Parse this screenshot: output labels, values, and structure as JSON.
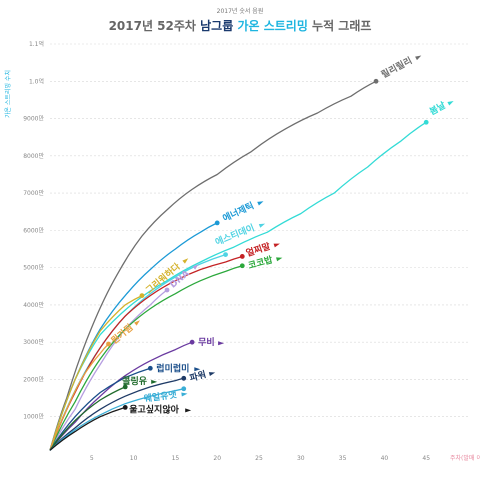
{
  "header": {
    "top_label": "2017년 숫서 음원",
    "title_prefix": "2017년 52주차 ",
    "title_group": "남그룹",
    "title_mid": " 가온 스트리밍",
    "title_suffix": " 누적 그래프"
  },
  "colors": {
    "title_gray": "#666666",
    "title_group": "#1a3a6e",
    "title_highlight": "#1fb5e0",
    "grid": "#d8d8d8",
    "axis_label": "#1fb5e0",
    "x_axis_label": "#e88aa0"
  },
  "chart_data": {
    "type": "line",
    "ylabel": "가온 스트리밍 수치",
    "xlabel": "주차(발매 이후)",
    "xlim": [
      0,
      50
    ],
    "ylim": [
      0,
      110000000
    ],
    "x_ticks": [
      5,
      10,
      15,
      20,
      25,
      30,
      35,
      40,
      45
    ],
    "x_tick_labels": [
      "5",
      "10",
      "15",
      "20",
      "25",
      "30",
      "35",
      "40",
      "45"
    ],
    "y_ticks": [
      10000000,
      20000000,
      30000000,
      40000000,
      50000000,
      60000000,
      70000000,
      80000000,
      90000000,
      100000000,
      110000000
    ],
    "y_tick_labels": [
      "1000만",
      "2000만",
      "3000만",
      "4000만",
      "5000만",
      "6000만",
      "7000만",
      "8000만",
      "9000만",
      "1.0억",
      "1.1억"
    ],
    "grid": "horizontal",
    "series": [
      {
        "name": "릴리릴리",
        "color": "#6e6e6e",
        "x": [
          0,
          2,
          5,
          8,
          11,
          14,
          17,
          20,
          24,
          28,
          32,
          36,
          39
        ],
        "y": [
          1000000,
          15000000,
          34000000,
          48000000,
          58500000,
          65500000,
          71000000,
          75000000,
          81000000,
          87000000,
          91500000,
          96000000,
          100000000
        ]
      },
      {
        "name": "봄날",
        "color": "#33dbd6",
        "x": [
          0,
          3,
          6,
          10,
          14,
          18,
          22,
          26,
          30,
          34,
          38,
          42,
          45
        ],
        "y": [
          1000000,
          20000000,
          32000000,
          40500000,
          46500000,
          51500000,
          55500000,
          59500000,
          64500000,
          70000000,
          77000000,
          84000000,
          89000000
        ]
      },
      {
        "name": "에너제틱",
        "color": "#1c9ad6",
        "x": [
          0,
          3,
          6,
          9,
          12,
          15,
          18,
          20
        ],
        "y": [
          1000000,
          20000000,
          33500000,
          42500000,
          49500000,
          55000000,
          59500000,
          62000000
        ]
      },
      {
        "name": "에스티데이",
        "color": "#4fd3e3",
        "x": [
          0,
          3,
          6,
          9,
          12,
          15,
          18,
          21
        ],
        "y": [
          1000000,
          17000000,
          28500000,
          37000000,
          43000000,
          47500000,
          51000000,
          53500000
        ]
      },
      {
        "name": "그리워하다",
        "color": "#d4b22c",
        "x": [
          0,
          3,
          6,
          9,
          11
        ],
        "y": [
          1000000,
          20000000,
          33000000,
          40000000,
          42500000
        ]
      },
      {
        "name": "DNA",
        "color": "#b69ee0",
        "x": [
          0,
          3,
          6,
          9,
          12,
          14
        ],
        "y": [
          1000000,
          12000000,
          24000000,
          33500000,
          40000000,
          44000000
        ]
      },
      {
        "name": "얼찌말",
        "color": "#c42224",
        "x": [
          0,
          3,
          6,
          9,
          12,
          15,
          18,
          21,
          23
        ],
        "y": [
          1000000,
          16500000,
          28500000,
          37000000,
          42500000,
          46500000,
          49500000,
          51500000,
          53000000
        ]
      },
      {
        "name": "코코밥",
        "color": "#2ca83c",
        "x": [
          0,
          3,
          6,
          9,
          12,
          15,
          18,
          21,
          23
        ],
        "y": [
          1000000,
          14000000,
          25500000,
          33500000,
          39000000,
          43000000,
          46500000,
          49000000,
          50500000
        ]
      },
      {
        "name": "뭔가됨",
        "color": "#e8a040",
        "x": [
          0,
          2,
          4,
          6,
          7
        ],
        "y": [
          1000000,
          12000000,
          21000000,
          27000000,
          29500000
        ]
      },
      {
        "name": "무비",
        "color": "#6a3aa0",
        "x": [
          0,
          3,
          6,
          9,
          12,
          15,
          17
        ],
        "y": [
          1000000,
          8500000,
          15500000,
          21000000,
          25000000,
          28000000,
          30000000
        ]
      },
      {
        "name": "럽미럽미",
        "color": "#1a4e8a",
        "x": [
          0,
          3,
          6,
          9,
          12
        ],
        "y": [
          1000000,
          10000000,
          16500000,
          20500000,
          23000000
        ]
      },
      {
        "name": "파워",
        "color": "#1e3a66",
        "x": [
          0,
          3,
          6,
          9,
          12,
          15,
          16
        ],
        "y": [
          1000000,
          7000000,
          12000000,
          15500000,
          18000000,
          19700000,
          20300000
        ]
      },
      {
        "name": "콜링유",
        "color": "#1f6b2c",
        "x": [
          0,
          3,
          6,
          9
        ],
        "y": [
          1000000,
          9000000,
          14500000,
          18000000
        ]
      },
      {
        "name": "웨얼유앳",
        "color": "#3aaed6",
        "x": [
          0,
          3,
          6,
          9,
          12,
          15,
          16
        ],
        "y": [
          1000000,
          6500000,
          10500000,
          13500000,
          15500000,
          17000000,
          17500000
        ]
      },
      {
        "name": "울고싶지않아",
        "color": "#1a1a1a",
        "x": [
          0,
          3,
          6,
          9
        ],
        "y": [
          1000000,
          6000000,
          10000000,
          12500000
        ]
      }
    ]
  }
}
